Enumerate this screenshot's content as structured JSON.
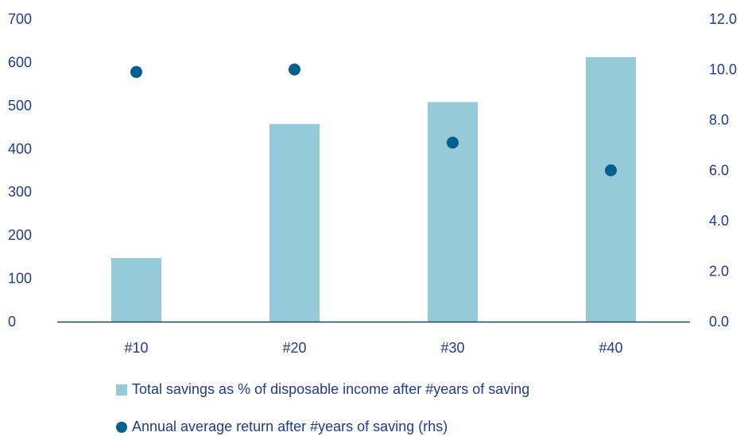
{
  "chart_data": {
    "type": "bar",
    "categories": [
      "#10",
      "#20",
      "#30",
      "#40"
    ],
    "series": [
      {
        "name": "Total savings as % of disposable income after #years of saving",
        "kind": "bar",
        "axis": "left",
        "color": "#96cad9",
        "values": [
          147,
          457,
          508,
          612
        ]
      },
      {
        "name": "Annual average return after #years of saving (rhs)",
        "kind": "scatter",
        "axis": "right",
        "color": "#005f8f",
        "values": [
          9.9,
          10.0,
          7.1,
          6.0
        ]
      }
    ],
    "y_left": {
      "ylim": [
        0,
        700
      ],
      "ticks": [
        "0",
        "100",
        "200",
        "300",
        "400",
        "500",
        "600",
        "700"
      ]
    },
    "y_right": {
      "ylim": [
        0,
        12
      ],
      "ticks": [
        "0.0",
        "2.0",
        "4.0",
        "6.0",
        "8.0",
        "10.0",
        "12.0"
      ]
    },
    "title": "",
    "xlabel": "",
    "ylabel": "",
    "grid": false,
    "legend": "bottom-left",
    "axis_color": "#1f3a93"
  }
}
